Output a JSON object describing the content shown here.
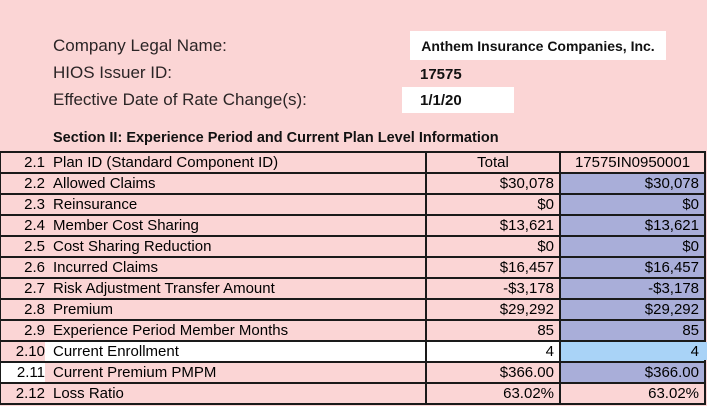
{
  "colors": {
    "pink": "#fbd5d5",
    "purple": "#a9aed9",
    "blue": "#a9d3f7",
    "white": "#ffffff",
    "border": "#1a1a1a"
  },
  "header": {
    "company_label": "Company Legal Name:",
    "company_value": "Anthem Insurance Companies, Inc.",
    "hios_label": "HIOS Issuer ID:",
    "hios_value": "17575",
    "date_label": "Effective Date of Rate Change(s):",
    "date_value": "1/1/20"
  },
  "section": {
    "title": "Section II: Experience Period and Current Plan Level Information"
  },
  "table": {
    "rows": [
      {
        "num": "2.1",
        "label": "Plan ID (Standard Component ID)",
        "total": "Total",
        "plan": "17575IN0950001",
        "align": "center",
        "bg": {
          "row": "pink",
          "num": "pink",
          "total": "pink",
          "plan": "pink"
        }
      },
      {
        "num": "2.2",
        "label": "Allowed Claims",
        "total": "$30,078",
        "plan": "$30,078",
        "align": "right",
        "bg": {
          "row": "pink",
          "num": "pink",
          "total": "pink",
          "plan": "purple"
        }
      },
      {
        "num": "2.3",
        "label": "Reinsurance",
        "total": "$0",
        "plan": "$0",
        "align": "right",
        "bg": {
          "row": "pink",
          "num": "pink",
          "total": "pink",
          "plan": "purple"
        }
      },
      {
        "num": "2.4",
        "label": "Member Cost Sharing",
        "total": "$13,621",
        "plan": "$13,621",
        "align": "right",
        "bg": {
          "row": "pink",
          "num": "pink",
          "total": "pink",
          "plan": "purple"
        }
      },
      {
        "num": "2.5",
        "label": "Cost Sharing Reduction",
        "total": "$0",
        "plan": "$0",
        "align": "right",
        "bg": {
          "row": "pink",
          "num": "pink",
          "total": "pink",
          "plan": "purple"
        }
      },
      {
        "num": "2.6",
        "label": "Incurred Claims",
        "total": "$16,457",
        "plan": "$16,457",
        "align": "right",
        "bg": {
          "row": "pink",
          "num": "pink",
          "total": "pink",
          "plan": "purple"
        }
      },
      {
        "num": "2.7",
        "label": "Risk Adjustment Transfer Amount",
        "total": "-$3,178",
        "plan": "-$3,178",
        "align": "right",
        "bg": {
          "row": "pink",
          "num": "pink",
          "total": "pink",
          "plan": "purple"
        }
      },
      {
        "num": "2.8",
        "label": "Premium",
        "total": "$29,292",
        "plan": "$29,292",
        "align": "right",
        "bg": {
          "row": "pink",
          "num": "pink",
          "total": "pink",
          "plan": "purple"
        }
      },
      {
        "num": "2.9",
        "label": "Experience Period Member Months",
        "total": "85",
        "plan": "85",
        "align": "right",
        "bg": {
          "row": "pink",
          "num": "pink",
          "total": "pink",
          "plan": "purple"
        }
      },
      {
        "num": "2.10",
        "label": "Current Enrollment",
        "total": "4",
        "plan": "4",
        "align": "right",
        "bg": {
          "row": "white",
          "num": "pink",
          "total": "white",
          "plan": "blue"
        }
      },
      {
        "num": "2.11",
        "label": "Current Premium PMPM",
        "total": "$366.00",
        "plan": "$366.00",
        "align": "right",
        "bg": {
          "row": "pink",
          "num": "white",
          "total": "pink",
          "plan": "purple"
        }
      },
      {
        "num": "2.12",
        "label": "Loss Ratio",
        "total": "63.02%",
        "plan": "63.02%",
        "align": "right",
        "bg": {
          "row": "pink",
          "num": "pink",
          "total": "pink",
          "plan": "pink"
        }
      }
    ]
  }
}
